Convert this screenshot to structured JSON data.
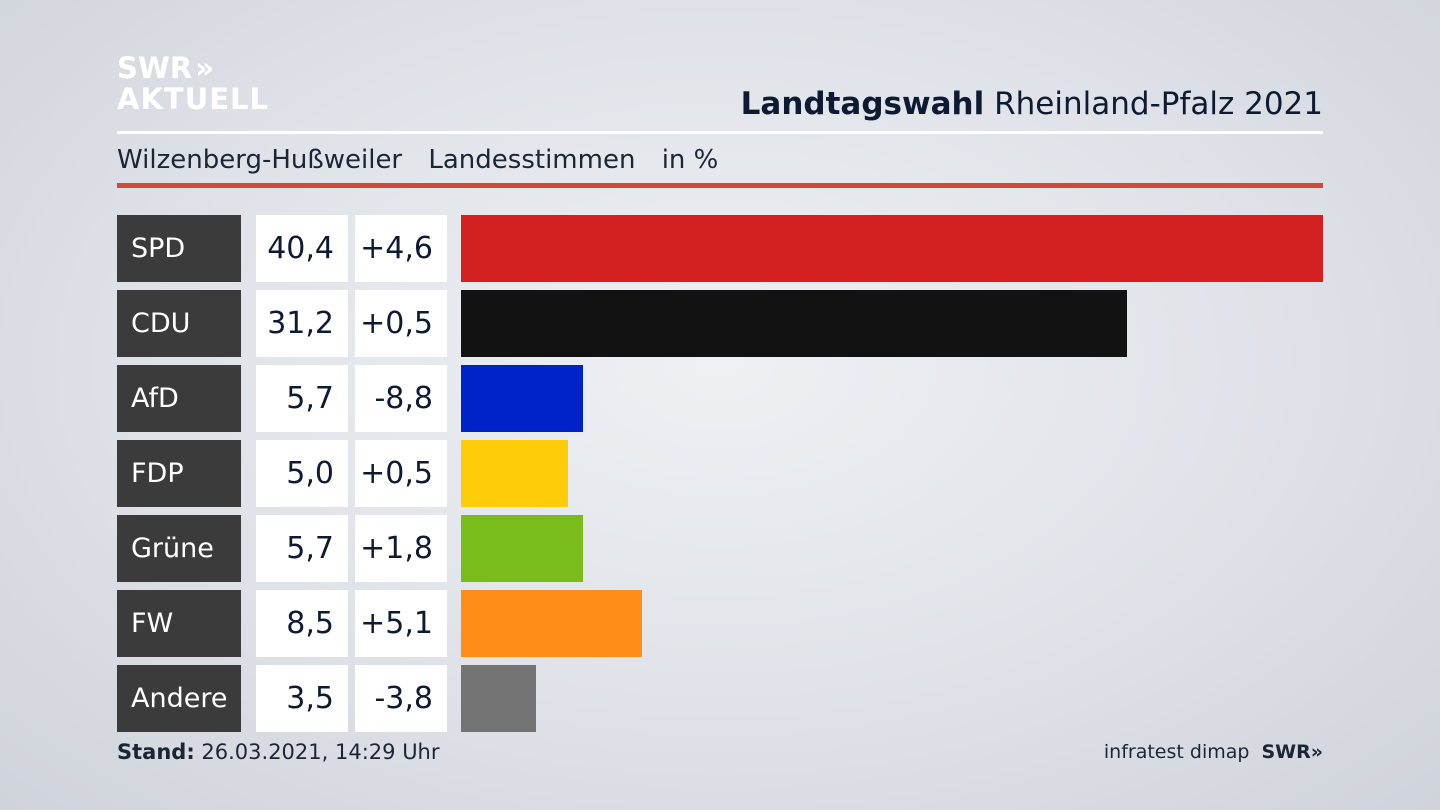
{
  "header": {
    "logo_line1": "SWR",
    "logo_arrows": "»",
    "logo_line2": "AKTUELL",
    "title_bold": "Landtagswahl",
    "title_rest": "Rheinland-Pfalz 2021"
  },
  "subtitle": {
    "place": "Wilzenberg-Hußweiler",
    "type": "Landesstimmen",
    "unit": "in %"
  },
  "colors": {
    "SPD": "#d42020",
    "CDU": "#121212",
    "AfD": "#0022c9",
    "FDP": "#ffcc0a",
    "Grüne": "#79bc1c",
    "FW": "#ff8d17",
    "Andere": "#737373",
    "accent_rule": "#c94c3c"
  },
  "chart_data": {
    "type": "bar",
    "orientation": "horizontal",
    "categories": [
      "SPD",
      "CDU",
      "AfD",
      "FDP",
      "Grüne",
      "FW",
      "Andere"
    ],
    "values": [
      40.4,
      31.2,
      5.7,
      5.0,
      5.7,
      8.5,
      3.5
    ],
    "value_labels": [
      "40,4",
      "31,2",
      "5,7",
      "5,0",
      "5,7",
      "8,5",
      "3,5"
    ],
    "changes": [
      4.6,
      0.5,
      -8.8,
      0.5,
      1.8,
      5.1,
      -3.8
    ],
    "change_labels": [
      "+4,6",
      "+0,5",
      "-8,8",
      "+0,5",
      "+1,8",
      "+5,1",
      "-3,8"
    ],
    "xlim": [
      0,
      40.4
    ]
  },
  "footer": {
    "stand_label": "Stand:",
    "stand_value": "26.03.2021, 14:29 Uhr",
    "source": "infratest dimap",
    "brand": "SWR",
    "brand_arrows": "»"
  }
}
